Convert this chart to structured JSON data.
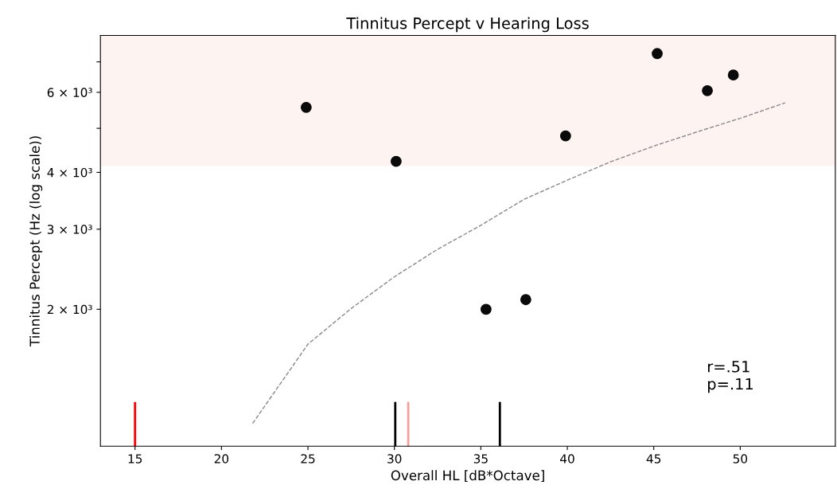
{
  "chart_data": {
    "type": "scatter",
    "title": "Tinnitus Percept v Hearing Loss",
    "xlabel": "Overall HL [dB*Octave]",
    "ylabel": "Tinnitus Percept (Hz (log scale))",
    "log": "y",
    "grid": false,
    "marker": "circle",
    "xlim": [
      13,
      55.5
    ],
    "xticks": [
      15,
      20,
      25,
      30,
      35,
      40,
      45,
      50
    ],
    "ylim": [
      1000,
      8000
    ],
    "yticks": [
      {
        "value": 2000,
        "label": "2 × 10³"
      },
      {
        "value": 3000,
        "label": "3 × 10³"
      },
      {
        "value": 4000,
        "label": "4 × 10³"
      },
      {
        "value": 5000,
        "label": null
      },
      {
        "value": 6000,
        "label": "6 × 10³"
      },
      {
        "value": 7000,
        "label": null
      }
    ],
    "series": [
      {
        "color": "#0a0a0a",
        "x": [
          24.9,
          30.1,
          35.3,
          37.6,
          39.9,
          45.2,
          48.1,
          49.6
        ],
        "values": [
          5560,
          4230,
          2000,
          2100,
          4810,
          7300,
          6050,
          6550
        ]
      },
      {
        "type": "line",
        "color": "#888888",
        "line_style": "dashed",
        "marker": "none",
        "x": [
          21.8,
          25,
          27.5,
          30,
          32.5,
          35,
          37.5,
          40,
          42.5,
          45,
          47.5,
          50,
          52.6
        ],
        "values": [
          1122,
          1676,
          2008,
          2358,
          2710,
          3060,
          3490,
          3846,
          4220,
          4570,
          4910,
          5260,
          5690
        ]
      }
    ],
    "bands": [
      {
        "axis": "y",
        "from": 4130,
        "to": 8000,
        "color": "#fdf3f0"
      }
    ],
    "ref_lines": [
      {
        "axis": "x",
        "value": 15,
        "color": "#ff0000"
      },
      {
        "axis": "x",
        "value": 30.05,
        "color": "#000000"
      },
      {
        "axis": "x",
        "value": 30.8,
        "color": "#f4a09a"
      },
      {
        "axis": "x",
        "value": 36.1,
        "color": "#000000"
      }
    ],
    "annotations": [
      "r=.51\np=.11"
    ]
  }
}
